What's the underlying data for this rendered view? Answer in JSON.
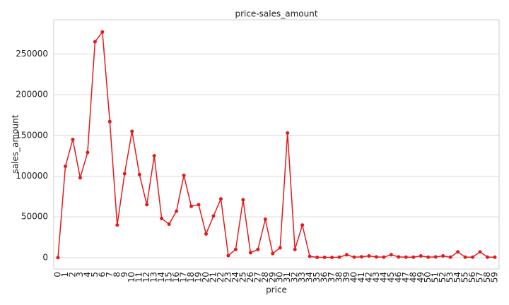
{
  "chart_data": {
    "type": "line",
    "title": "price-sales_amount",
    "x_label": "price",
    "y_label": "sales_amount",
    "categories": [
      "0",
      "1",
      "2",
      "3",
      "4",
      "5",
      "6",
      "7",
      "8",
      "9",
      "10",
      "11",
      "12",
      "13",
      "14",
      "15",
      "16",
      "17",
      "18",
      "19",
      "20",
      "21",
      "22",
      "23",
      "24",
      "25",
      "26",
      "27",
      "28",
      "29",
      "30",
      "31",
      "32",
      "33",
      "34",
      "35",
      "36",
      "37",
      "38",
      "39",
      "40",
      "41",
      "42",
      "43",
      "44",
      "45",
      "46",
      "47",
      "48",
      "49",
      "50",
      "51",
      "52",
      "53",
      "54",
      "55",
      "56",
      "57",
      "58",
      "59"
    ],
    "series": [
      {
        "name": "sales_amount",
        "color": "#e41a1c",
        "values": [
          0,
          112000,
          145000,
          98000,
          129000,
          265000,
          277000,
          167000,
          40000,
          103000,
          155000,
          102000,
          65000,
          125000,
          48000,
          41000,
          57000,
          101000,
          63000,
          65000,
          29000,
          51000,
          72000,
          2500,
          10000,
          71000,
          6000,
          10000,
          47000,
          5000,
          12000,
          153000,
          10000,
          40000,
          1500,
          300,
          300,
          200,
          500,
          3500,
          500,
          1000,
          2000,
          800,
          500,
          3500,
          800,
          500,
          500,
          2000,
          500,
          800,
          2000,
          500,
          7000,
          500,
          500,
          7000,
          500,
          500
        ]
      }
    ],
    "ylim": [
      -14000,
      292000
    ],
    "yticks": [
      0,
      50000,
      100000,
      150000,
      200000,
      250000
    ],
    "grid": true
  }
}
